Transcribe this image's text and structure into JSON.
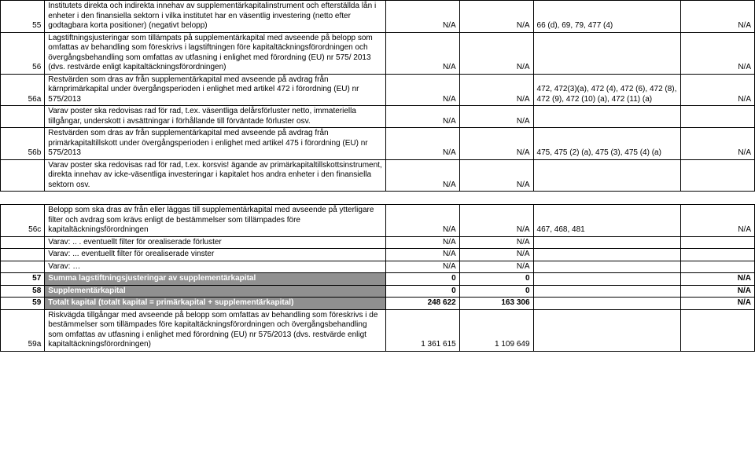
{
  "cols": {
    "id": "col-id",
    "desc": "col-desc",
    "c3": "col-c3",
    "c4": "col-c4",
    "c5": "col-c5",
    "c6": "col-c6"
  },
  "rows": [
    {
      "id": "55",
      "desc": "Institutets direkta och indirekta innehav av supplementärkapitalinstrument och efterställda lån i enheter i den finansiella sektorn i vilka institutet har en väsentlig investering (netto efter godtagbara korta positioner) (negativt belopp)",
      "c3": "N/A",
      "c4": "N/A",
      "c5": "66 (d), 69, 79, 477 (4)",
      "c6": "N/A"
    },
    {
      "id": "56",
      "desc": "Lagstiftningsjusteringar som tillämpats på supplementärkapital med avseende på belopp som omfattas av behandling som föreskrivs i lagstiftningen före kapitaltäckningsförordningen och övergångsbehandling som omfattas av utfasning i enlighet med förordning (EU) nr 575/ 2013 (dvs. restvärde enligt kapitaltäckningsförordningen)",
      "c3": "N/A",
      "c4": "N/A",
      "c5": "",
      "c6": "N/A"
    },
    {
      "id": "56a",
      "desc": "Restvärden som dras av från supplementärkapital med avseende på avdrag från kärnprimärkapital under övergångsperioden i enlighet med artikel 472 i förordning (EU) nr 575/2013",
      "c3": "N/A",
      "c4": "N/A",
      "c5": "472, 472(3)(a), 472 (4), 472 (6), 472 (8), 472 (9), 472 (10) (a), 472 (11) (a)",
      "c6": "N/A"
    },
    {
      "id": "",
      "desc": "Varav poster ska redovisas rad för rad, t.ex. väsentliga delårsförluster netto, immateriella tillgångar, underskott i avsättningar i förhållande till förväntade förluster osv.",
      "c3": "N/A",
      "c4": "N/A",
      "c5": "",
      "c6": ""
    },
    {
      "id": "56b",
      "desc": "Restvärden som dras av från supplementärkapital med avseende på avdrag från primärkapitaltillskott under övergångsperioden i enlighet med artikel 475 i förordning (EU) nr 575/2013",
      "c3": "N/A",
      "c4": "N/A",
      "c5": "475, 475 (2) (a), 475 (3), 475 (4) (a)",
      "c6": "N/A"
    },
    {
      "id": "",
      "desc": "Varav poster ska redovisas rad för rad, t.ex. korsvis! ägande av primärkapitaltillskottsinstrument, direkta innehav av icke-väsentliga investeringar i kapitalet hos andra enheter i den finansiella sektorn osv.",
      "c3": "N/A",
      "c4": "N/A",
      "c5": "",
      "c6": ""
    },
    {
      "id": "56c",
      "desc": "Belopp som ska dras av från eller läggas till supplementärkapital med avseende på ytterligare filter och avdrag som krävs enligt de bestämmelser som tillämpades före kapitaltäckningsförordningen",
      "c3": "N/A",
      "c4": "N/A",
      "c5": "467, 468, 481",
      "c6": "N/A",
      "gap": true
    },
    {
      "id": "",
      "desc": "Varav: .. . eventuellt filter för orealiserade förluster",
      "c3": "N/A",
      "c4": "N/A",
      "c5": "",
      "c6": ""
    },
    {
      "id": "",
      "desc": "Varav: ... eventuellt filter för orealiserade vinster",
      "c3": "N/A",
      "c4": "N/A",
      "c5": "",
      "c6": ""
    },
    {
      "id": "",
      "desc": "Varav: …",
      "c3": "N/A",
      "c4": "N/A",
      "c5": "",
      "c6": ""
    },
    {
      "id": "57",
      "desc": "Summa lagstiftningsjusteringar av supplementärkapital",
      "c3": "0",
      "c4": "0",
      "c5": "",
      "c6": "N/A",
      "hl": true
    },
    {
      "id": "58",
      "desc": "Supplementärkapital",
      "c3": "0",
      "c4": "0",
      "c5": "",
      "c6": "N/A",
      "hl": true
    },
    {
      "id": "59",
      "desc": "Totalt kapital (totalt kapital = primärkapital + supplementärkapital)",
      "c3": "248 622",
      "c4": "163 306",
      "c5": "",
      "c6": "N/A",
      "hl": true
    },
    {
      "id": "59a",
      "desc": "Riskvägda tillgångar med avseende på belopp som omfattas av behandling som föreskrivs i de bestämmelser som tillämpades före kapitaltäckningsförordningen och övergångsbehandling som omfattas av utfasning i enlighet med förordning (EU) nr 575/2013 (dvs. restvärde enligt kapitaltäckningsförordningen)",
      "c3": "1 361 615",
      "c4": "1 109 649",
      "c5": "",
      "c6": ""
    }
  ]
}
